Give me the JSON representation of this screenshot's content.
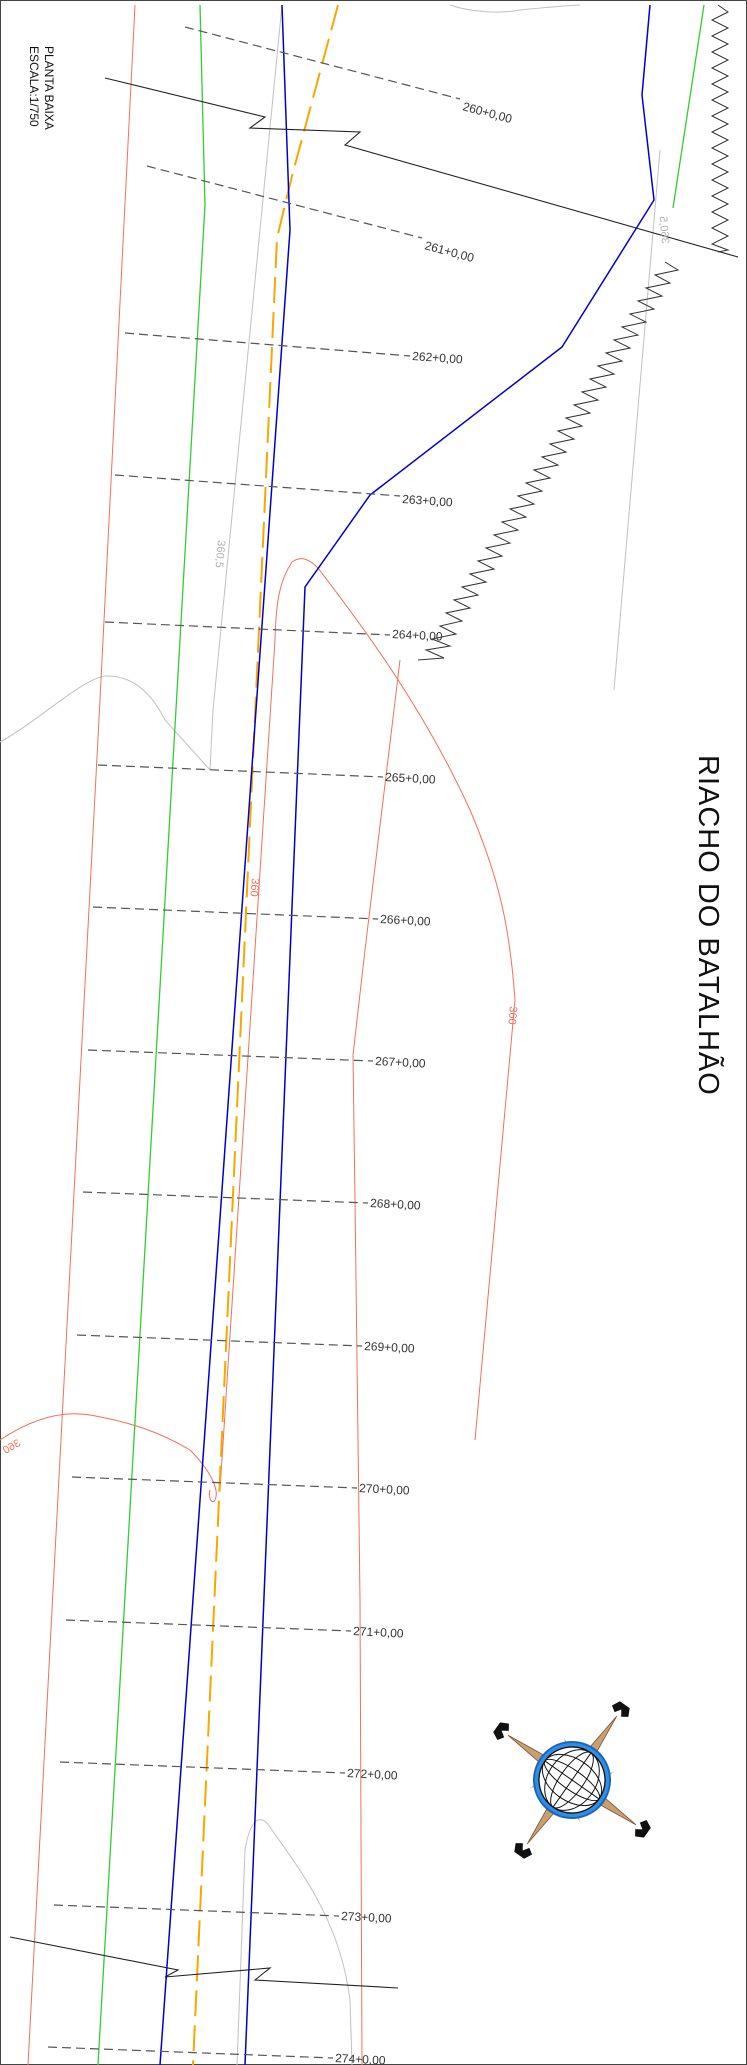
{
  "title_block": {
    "line1": "PLANTA BAIXA",
    "line2": "ESCALA:1/750"
  },
  "river_name": "RIACHO DO BATALHÃO",
  "stations": [
    "260+0,00",
    "261+0,00",
    "262+0,00",
    "263+0,00",
    "264+0,00",
    "265+0,00",
    "266+0,00",
    "267+0,00",
    "268+0,00",
    "269+0,00",
    "270+0,00",
    "271+0,00",
    "272+0,00",
    "273+0,00",
    "274+0,00"
  ],
  "contour_labels": {
    "c360_5_left": "360,5",
    "c360_5_right": "360,5",
    "c360_center": "360",
    "c360_right": "360",
    "c360_left": "360"
  },
  "colors": {
    "road_edge": "#0000cc",
    "centerline": "#f5a800",
    "offset_line": "#33cc33",
    "contour_360": "#f0705a",
    "contour_360_5": "#b8b8b8",
    "station_line": "#555555",
    "river_bank": "#333333"
  },
  "icons": {
    "north": "compass-rose-icon"
  }
}
